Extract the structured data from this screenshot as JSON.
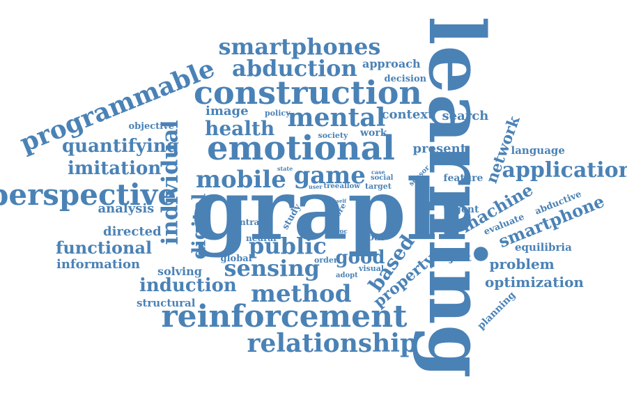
{
  "color": "#4a82b6",
  "words": [
    {
      "text": "learning",
      "rotation": 90
    },
    {
      "text": "graph",
      "rotation": 0
    },
    {
      "text": "construction",
      "rotation": 0
    },
    {
      "text": "emotional",
      "rotation": 0
    },
    {
      "text": "reinforcement",
      "rotation": 0
    },
    {
      "text": "perspective",
      "rotation": 0
    },
    {
      "text": "programmable",
      "rotation": -22
    },
    {
      "text": "individual",
      "rotation": -90
    },
    {
      "text": "relationship",
      "rotation": 0
    },
    {
      "text": "smartphones",
      "rotation": 0
    },
    {
      "text": "abduction",
      "rotation": 0
    },
    {
      "text": "mental",
      "rotation": 0
    },
    {
      "text": "mobile",
      "rotation": 0
    },
    {
      "text": "game",
      "rotation": 0
    },
    {
      "text": "method",
      "rotation": 0
    },
    {
      "text": "sensing",
      "rotation": 0
    },
    {
      "text": "public",
      "rotation": 0
    },
    {
      "text": "application",
      "rotation": 0
    },
    {
      "text": "health",
      "rotation": 0
    },
    {
      "text": "quantifying",
      "rotation": 0
    },
    {
      "text": "imitation",
      "rotation": 0
    },
    {
      "text": "induction",
      "rotation": 0
    },
    {
      "text": "functional",
      "rotation": 0
    },
    {
      "text": "digital",
      "rotation": -90
    },
    {
      "text": "based",
      "rotation": -55
    },
    {
      "text": "good",
      "rotation": 0
    },
    {
      "text": "machine",
      "rotation": -30
    },
    {
      "text": "smartphone",
      "rotation": -22
    },
    {
      "text": "network",
      "rotation": -70
    },
    {
      "text": "property",
      "rotation": -40
    },
    {
      "text": "present",
      "rotation": 0
    },
    {
      "text": "image",
      "rotation": 0
    },
    {
      "text": "context",
      "rotation": 0
    },
    {
      "text": "search",
      "rotation": 0
    },
    {
      "text": "optimization",
      "rotation": 0
    },
    {
      "text": "problem",
      "rotation": 0
    },
    {
      "text": "directed",
      "rotation": 0
    },
    {
      "text": "analysis",
      "rotation": 0
    },
    {
      "text": "information",
      "rotation": 0
    },
    {
      "text": "solving",
      "rotation": 0
    },
    {
      "text": "structural",
      "rotation": 0
    },
    {
      "text": "approach",
      "rotation": 0
    },
    {
      "text": "decision",
      "rotation": 0
    },
    {
      "text": "objective",
      "rotation": 0
    },
    {
      "text": "language",
      "rotation": 0
    },
    {
      "text": "feature",
      "rotation": 0
    },
    {
      "text": "agent",
      "rotation": 0
    },
    {
      "text": "equilibria",
      "rotation": 0
    },
    {
      "text": "object",
      "rotation": 0
    },
    {
      "text": "evaluate",
      "rotation": -22
    },
    {
      "text": "abductive",
      "rotation": -22
    },
    {
      "text": "planning",
      "rotation": -45
    },
    {
      "text": "work",
      "rotation": 0
    },
    {
      "text": "society",
      "rotation": 0
    },
    {
      "text": "policy",
      "rotation": 0
    },
    {
      "text": "goal",
      "rotation": 0
    },
    {
      "text": "central",
      "rotation": 0
    },
    {
      "text": "neural",
      "rotation": 0
    },
    {
      "text": "global",
      "rotation": 0
    },
    {
      "text": "order",
      "rotation": 0
    },
    {
      "text": "visual",
      "rotation": 0
    },
    {
      "text": "adopt",
      "rotation": 0
    },
    {
      "text": "study",
      "rotation": -60
    },
    {
      "text": "more",
      "rotation": -60
    },
    {
      "text": "proc",
      "rotation": 0
    },
    {
      "text": "self",
      "rotation": 0
    },
    {
      "text": "state",
      "rotation": 0
    },
    {
      "text": "user",
      "rotation": 0
    },
    {
      "text": "tree",
      "rotation": 0
    },
    {
      "text": "allow",
      "rotation": 0
    },
    {
      "text": "case",
      "rotation": 0
    },
    {
      "text": "social",
      "rotation": 0
    },
    {
      "text": "target",
      "rotation": 0
    },
    {
      "text": "sensor",
      "rotation": -45
    }
  ]
}
